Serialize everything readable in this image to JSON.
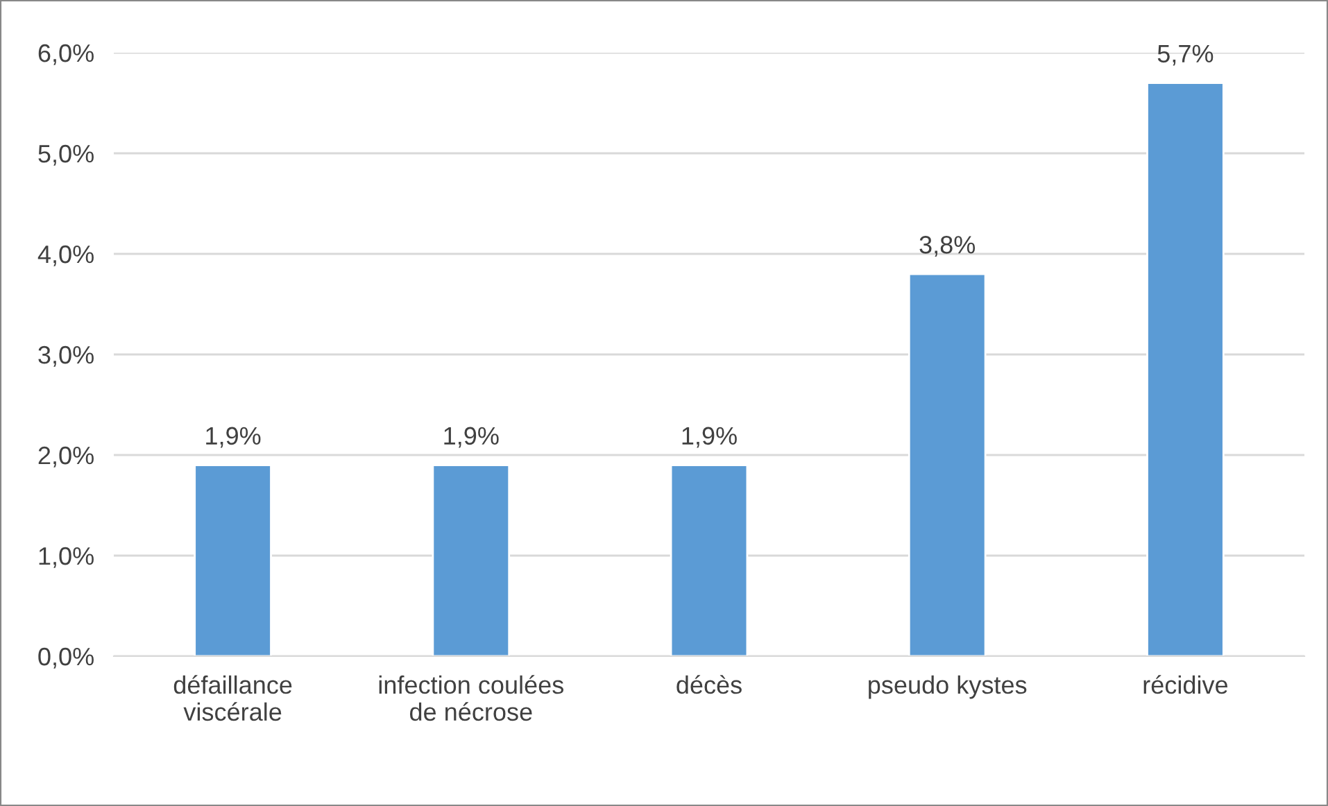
{
  "chart_data": {
    "type": "bar",
    "categories": [
      "défaillance\nviscérale",
      "infection coulées\nde nécrose",
      "décès",
      "pseudo kystes",
      "récidive"
    ],
    "values": [
      1.9,
      1.9,
      1.9,
      3.8,
      5.7
    ],
    "value_labels": [
      "1,9%",
      "1,9%",
      "1,9%",
      "3,8%",
      "5,7%"
    ],
    "color": "#5b9bd5",
    "ylim": [
      0,
      6
    ],
    "yticks": [
      {
        "value": 0,
        "label": "0,0%"
      },
      {
        "value": 1,
        "label": "1,0%"
      },
      {
        "value": 2,
        "label": "2,0%"
      },
      {
        "value": 3,
        "label": "3,0%"
      },
      {
        "value": 4,
        "label": "4,0%"
      },
      {
        "value": 5,
        "label": "5,0%"
      },
      {
        "value": 6,
        "label": "6,0%"
      }
    ],
    "grid": "y"
  }
}
